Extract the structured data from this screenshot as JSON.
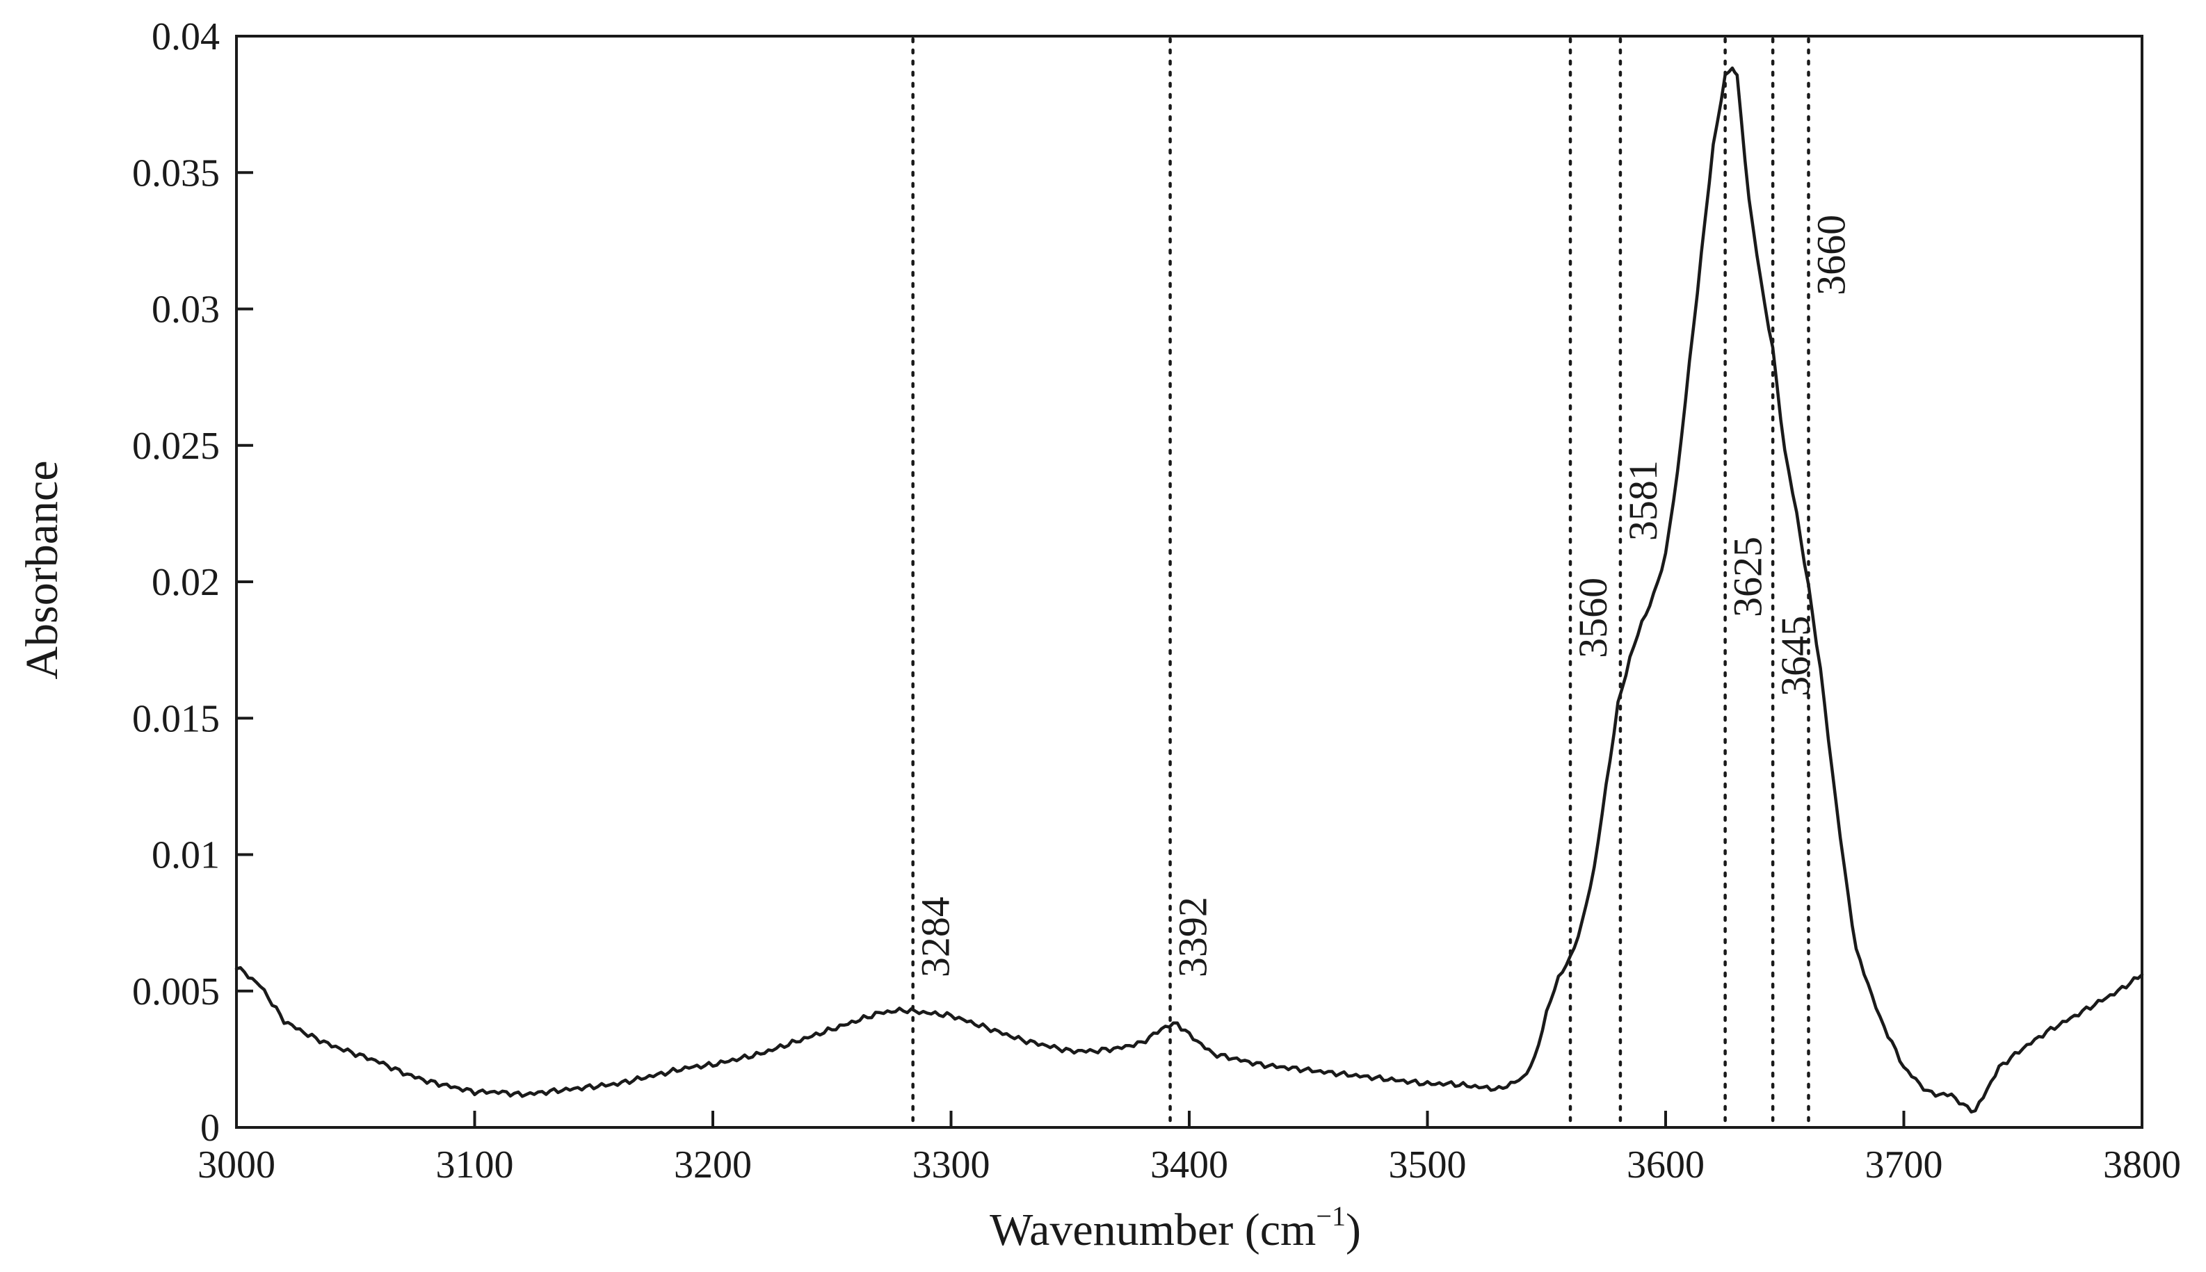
{
  "chart_data": {
    "type": "line",
    "title": "",
    "xlabel": "Wavenumber (cm",
    "xlabel_superscript": "−1",
    "xlabel_suffix": ")",
    "ylabel": "Absorbance",
    "xlim": [
      3000,
      3800
    ],
    "ylim": [
      0,
      0.04
    ],
    "x_ticks": [
      3000,
      3100,
      3200,
      3300,
      3400,
      3500,
      3600,
      3700,
      3800
    ],
    "x_tick_labels": [
      "3000",
      "3100",
      "3200",
      "3300",
      "3400",
      "3500",
      "3600",
      "3700",
      "3800"
    ],
    "y_ticks": [
      0,
      0.005,
      0.01,
      0.015,
      0.02,
      0.025,
      0.03,
      0.035,
      0.04
    ],
    "y_tick_labels": [
      "0",
      "0.005",
      "0.01",
      "0.015",
      "0.02",
      "0.025",
      "0.03",
      "0.035",
      "0.04"
    ],
    "grid": false,
    "line_color": "#1a1a1a",
    "series": [
      {
        "x": [
          3000,
          3010,
          3020,
          3030,
          3040,
          3050,
          3060,
          3070,
          3080,
          3090,
          3100,
          3110,
          3120,
          3130,
          3140,
          3150,
          3160,
          3170,
          3180,
          3190,
          3200,
          3210,
          3220,
          3230,
          3240,
          3250,
          3260,
          3270,
          3280,
          3290,
          3300,
          3310,
          3320,
          3330,
          3340,
          3350,
          3360,
          3370,
          3380,
          3390,
          3395,
          3400,
          3410,
          3420,
          3430,
          3440,
          3450,
          3460,
          3470,
          3480,
          3490,
          3500,
          3510,
          3520,
          3530,
          3540,
          3545,
          3550,
          3555,
          3560,
          3565,
          3570,
          3575,
          3580,
          3585,
          3590,
          3595,
          3600,
          3605,
          3610,
          3615,
          3620,
          3625,
          3628,
          3630,
          3635,
          3640,
          3645,
          3650,
          3655,
          3660,
          3665,
          3670,
          3675,
          3680,
          3690,
          3700,
          3710,
          3715,
          3720,
          3725,
          3730,
          3740,
          3750,
          3760,
          3770,
          3780,
          3790,
          3800
        ],
        "y": [
          0.0059,
          0.0052,
          0.0039,
          0.0034,
          0.003,
          0.0027,
          0.0024,
          0.002,
          0.0017,
          0.0015,
          0.0013,
          0.0013,
          0.0012,
          0.0013,
          0.0014,
          0.0015,
          0.0016,
          0.0018,
          0.002,
          0.0022,
          0.0023,
          0.0025,
          0.0027,
          0.003,
          0.0033,
          0.0036,
          0.0039,
          0.0042,
          0.0043,
          0.0042,
          0.0041,
          0.0038,
          0.0035,
          0.0032,
          0.003,
          0.0028,
          0.0028,
          0.0029,
          0.0031,
          0.0037,
          0.0038,
          0.0034,
          0.0027,
          0.0025,
          0.0023,
          0.0022,
          0.0021,
          0.002,
          0.0019,
          0.0018,
          0.0017,
          0.0016,
          0.0016,
          0.0015,
          0.0014,
          0.0018,
          0.0025,
          0.0042,
          0.0055,
          0.0062,
          0.0075,
          0.0095,
          0.0125,
          0.0155,
          0.0172,
          0.0185,
          0.0195,
          0.021,
          0.024,
          0.028,
          0.032,
          0.036,
          0.0385,
          0.0389,
          0.0385,
          0.034,
          0.031,
          0.0285,
          0.0248,
          0.0225,
          0.0198,
          0.0168,
          0.013,
          0.0095,
          0.0065,
          0.004,
          0.0022,
          0.0013,
          0.0012,
          0.0012,
          0.0008,
          0.0006,
          0.0022,
          0.0029,
          0.0035,
          0.004,
          0.0045,
          0.005,
          0.0056
        ]
      }
    ],
    "annotations": [
      {
        "x": 3284,
        "label": "3284",
        "label_y": 0.0055
      },
      {
        "x": 3392,
        "label": "3392",
        "label_y": 0.0055
      },
      {
        "x": 3560,
        "label": "3560",
        "label_y": 0.0172
      },
      {
        "x": 3581,
        "label": "3581",
        "label_y": 0.0215
      },
      {
        "x": 3625,
        "label": "3625",
        "label_y": 0.0187
      },
      {
        "x": 3645,
        "label": "3645",
        "label_y": 0.0158
      },
      {
        "x": 3660,
        "label": "3660",
        "label_y": 0.0305
      }
    ]
  }
}
